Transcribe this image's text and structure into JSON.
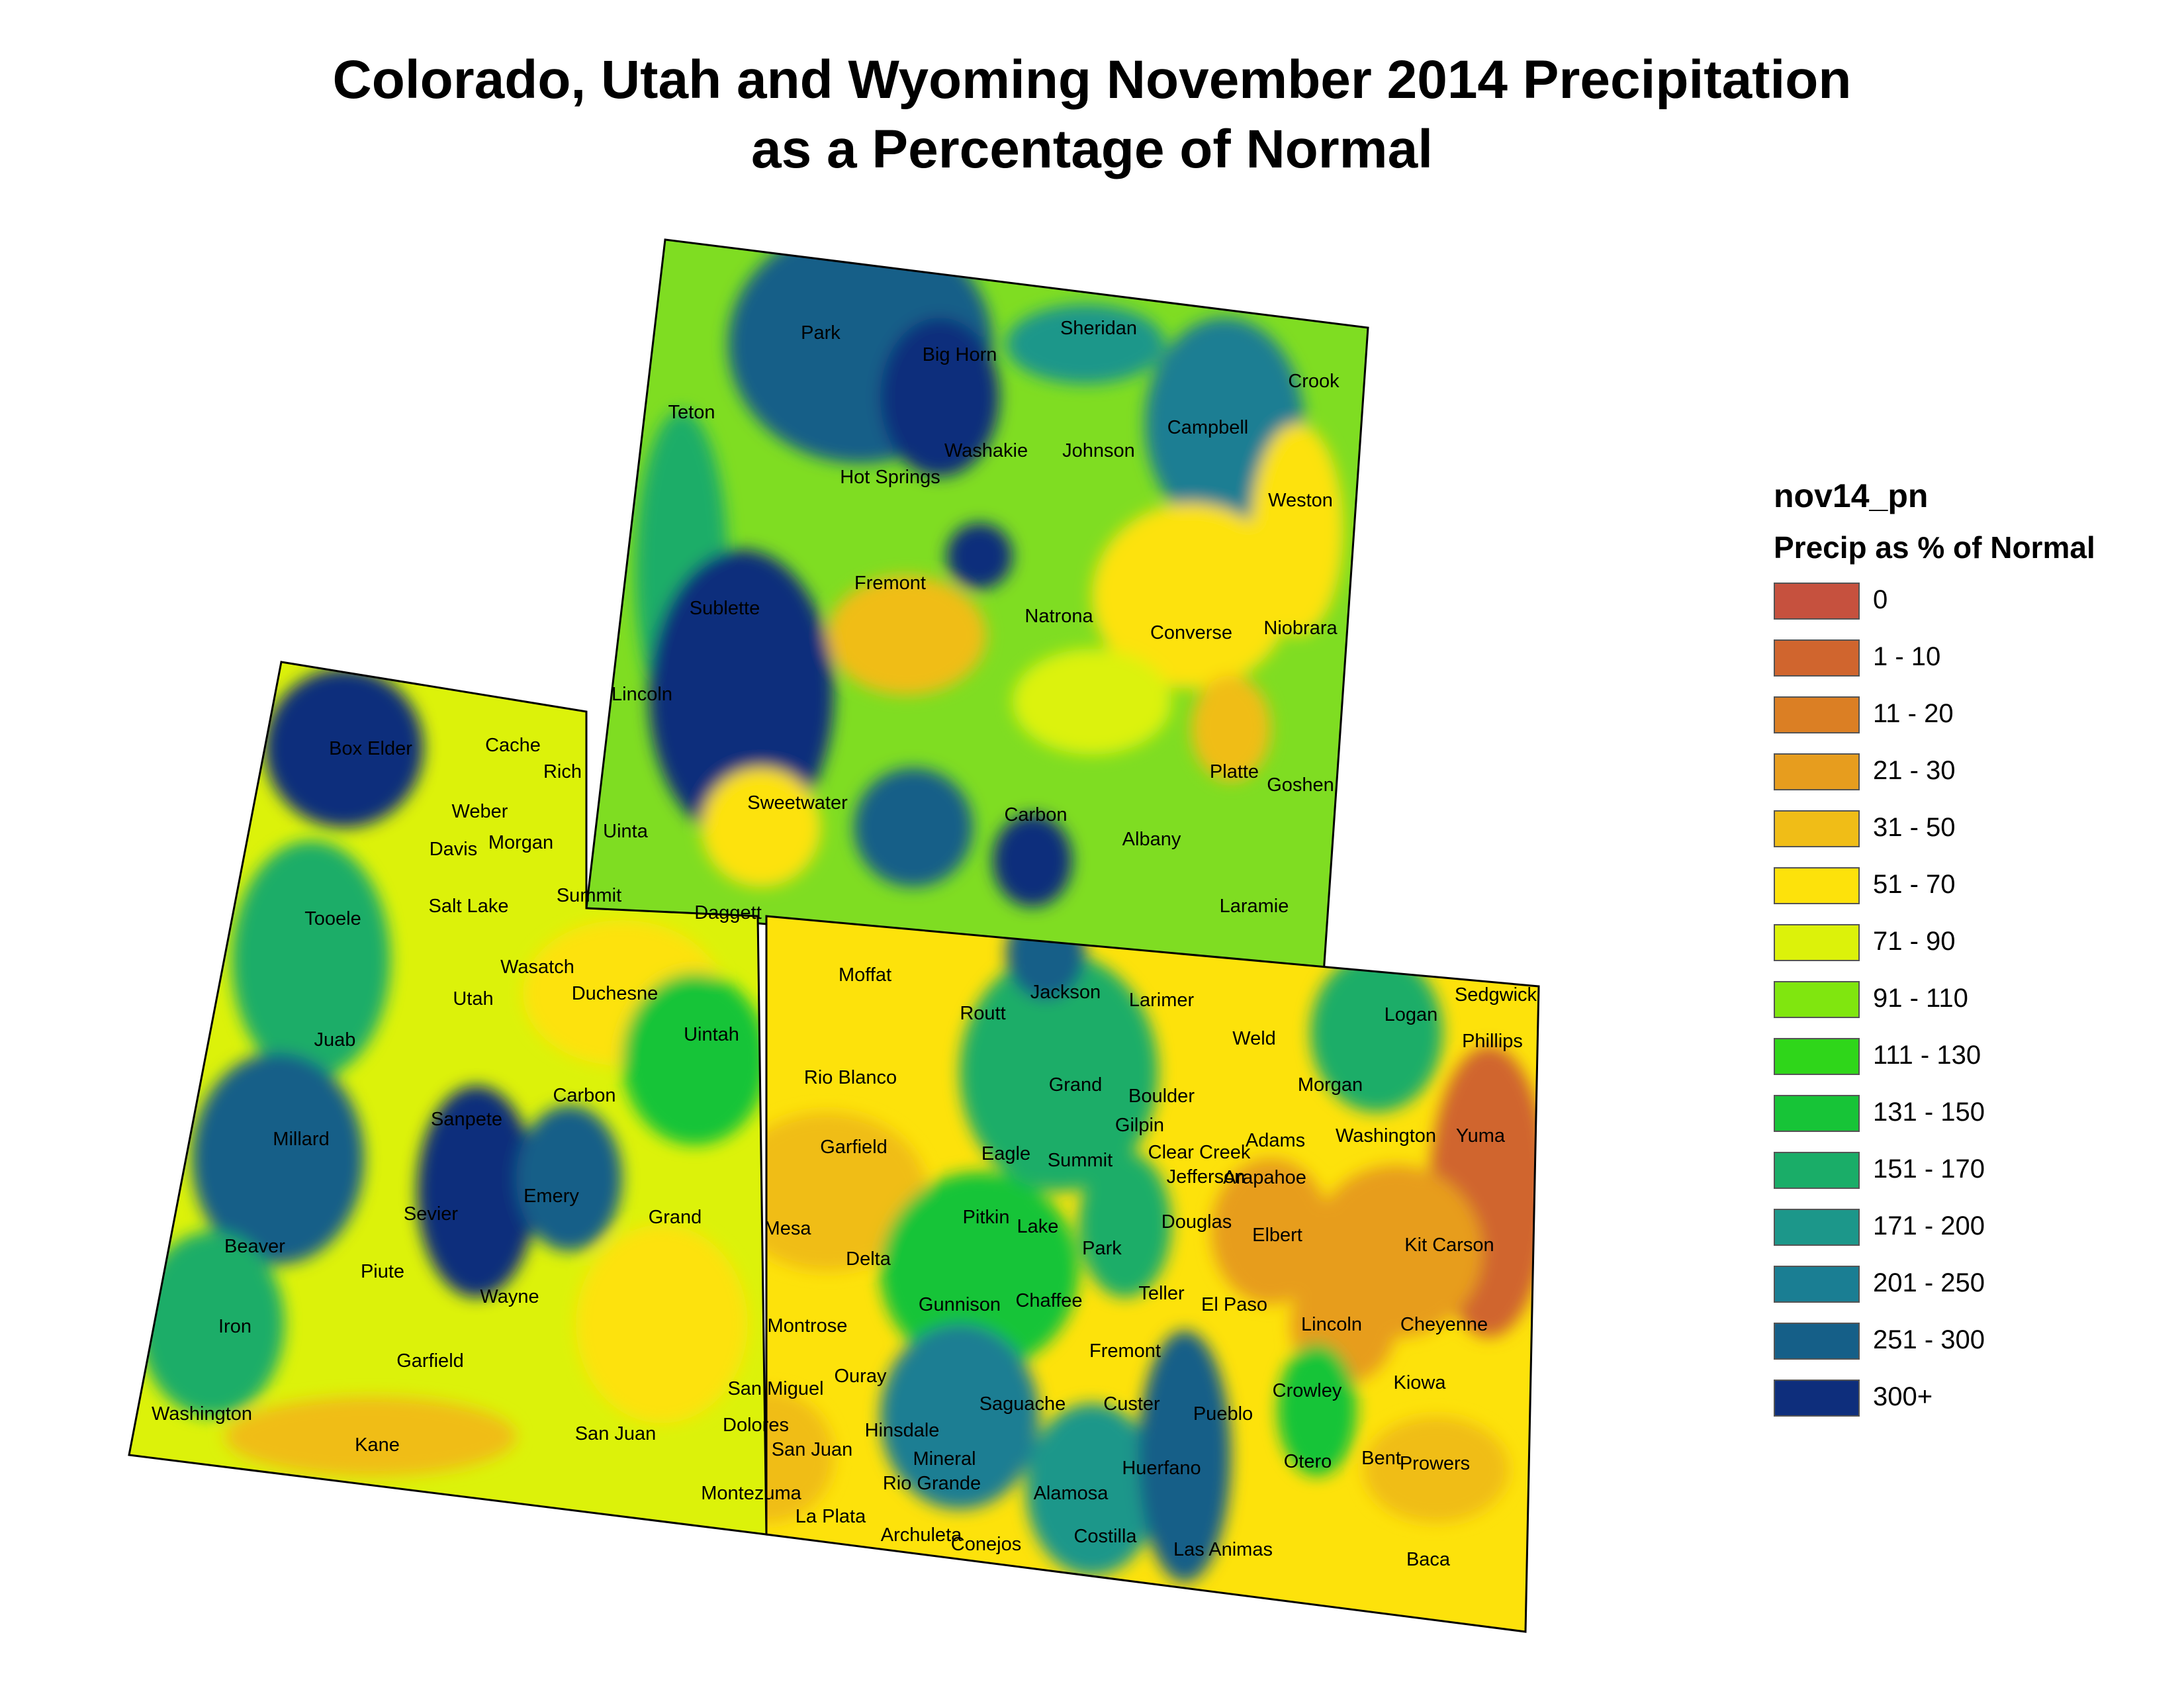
{
  "title_line1": "Colorado, Utah and Wyoming November 2014 Precipitation",
  "title_line2": "as a Percentage of Normal",
  "legend": {
    "layer_name": "nov14_pn",
    "field": "Precip as % of Normal",
    "classes": [
      {
        "label": "0",
        "color": "#c6513e"
      },
      {
        "label": "1 - 10",
        "color": "#d0652e"
      },
      {
        "label": "11 - 20",
        "color": "#db7f24"
      },
      {
        "label": "21 - 30",
        "color": "#e79d1e"
      },
      {
        "label": "31 - 50",
        "color": "#f0bd17"
      },
      {
        "label": "51 - 70",
        "color": "#fde20b"
      },
      {
        "label": "71 - 90",
        "color": "#dcf20a"
      },
      {
        "label": "91 - 110",
        "color": "#80e60f"
      },
      {
        "label": "111 - 130",
        "color": "#2fd61a"
      },
      {
        "label": "131 - 150",
        "color": "#17c437"
      },
      {
        "label": "151 - 170",
        "color": "#1aad68"
      },
      {
        "label": "171 - 200",
        "color": "#1c978a"
      },
      {
        "label": "201 - 250",
        "color": "#1a7e93"
      },
      {
        "label": "251 - 300",
        "color": "#155f88"
      },
      {
        "label": "300+",
        "color": "#0e2e7c"
      }
    ]
  },
  "counties": [
    "Park",
    "Big Horn",
    "Sheridan",
    "Crook",
    "Teton",
    "Washakie",
    "Johnson",
    "Campbell",
    "Hot Springs",
    "Weston",
    "Fremont",
    "Sublette",
    "Natrona",
    "Converse",
    "Niobrara",
    "Lincoln",
    "Platte",
    "Goshen",
    "Sweetwater",
    "Carbon",
    "Uinta",
    "Albany",
    "Laramie",
    "Box Elder",
    "Cache",
    "Rich",
    "Weber",
    "Davis",
    "Morgan",
    "Tooele",
    "Salt Lake",
    "Summit",
    "Daggett",
    "Wasatch",
    "Duchesne",
    "Utah",
    "Uintah",
    "Juab",
    "Moffat",
    "Jackson",
    "Routt",
    "Larimer",
    "Logan",
    "Sedgwick",
    "Phillips",
    "Weld",
    "Rio Blanco",
    "Grand",
    "Boulder",
    "Morgan",
    "Millard",
    "Sanpete",
    "Carbon",
    "Gilpin",
    "Garfield",
    "Eagle",
    "Summit",
    "Clear Creek",
    "Adams",
    "Washington",
    "Yuma",
    "Jefferson",
    "Arapahoe",
    "Emery",
    "Sevier",
    "Grand",
    "Mesa",
    "Pitkin",
    "Lake",
    "Douglas",
    "Elbert",
    "Kit Carson",
    "Beaver",
    "Park",
    "Delta",
    "Piute",
    "Wayne",
    "Teller",
    "Gunnison",
    "Chaffee",
    "El Paso",
    "Iron",
    "Montrose",
    "Lincoln",
    "Cheyenne",
    "Garfield",
    "Fremont",
    "Ouray",
    "San Miguel",
    "Crowley",
    "Kiowa",
    "Washington",
    "Saguache",
    "Custer",
    "Pueblo",
    "Kane",
    "San Juan",
    "Dolores",
    "Hinsdale",
    "San Juan",
    "Mineral",
    "Huerfano",
    "Otero",
    "Bent",
    "Prowers",
    "Rio Grande",
    "Alamosa",
    "Montezuma",
    "La Plata",
    "Archuleta",
    "Conejos",
    "Costilla",
    "Las Animas",
    "Baca"
  ]
}
